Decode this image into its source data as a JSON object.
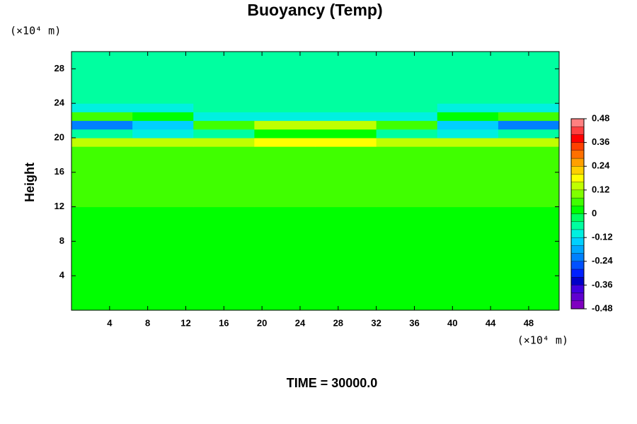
{
  "chart_data": {
    "type": "heatmap",
    "title": "Buoyancy (Temp)",
    "y_label": "Height",
    "y_unit": "(×10⁴ m)",
    "x_unit": "(×10⁴ m)",
    "footer": "TIME = 30000.0",
    "xlim": [
      0,
      51.2
    ],
    "ylim": [
      0,
      30
    ],
    "xticks": [
      4,
      8,
      12,
      16,
      20,
      24,
      28,
      32,
      36,
      40,
      44,
      48
    ],
    "yticks": [
      4,
      8,
      12,
      16,
      20,
      24,
      28
    ],
    "x_bins": [
      0,
      6.4,
      12.8,
      19.2,
      25.6,
      32,
      38.4,
      44.8,
      51.2
    ],
    "y_bins": [
      0,
      1,
      2,
      3,
      4,
      5,
      6,
      7,
      8,
      9,
      10,
      11,
      12,
      13,
      14,
      15,
      16,
      17,
      18,
      19,
      20,
      21,
      22,
      23,
      24,
      25,
      26,
      27,
      28,
      29,
      30
    ],
    "z": [
      [
        0.01,
        0.01,
        0.01,
        0.01,
        0.01,
        0.01,
        0.01,
        0.01
      ],
      [
        0.01,
        0.01,
        0.01,
        0.01,
        0.01,
        0.01,
        0.01,
        0.01
      ],
      [
        0.01,
        0.01,
        0.01,
        0.01,
        0.01,
        0.01,
        0.01,
        0.01
      ],
      [
        0.01,
        0.01,
        0.01,
        0.01,
        0.01,
        0.01,
        0.01,
        0.01
      ],
      [
        0.01,
        0.01,
        0.01,
        0.01,
        0.01,
        0.01,
        0.01,
        0.01
      ],
      [
        0.01,
        0.01,
        0.01,
        0.01,
        0.01,
        0.01,
        0.01,
        0.01
      ],
      [
        0.01,
        0.01,
        0.01,
        0.01,
        0.01,
        0.01,
        0.01,
        0.01
      ],
      [
        0.01,
        0.01,
        0.01,
        0.01,
        0.01,
        0.01,
        0.01,
        0.01
      ],
      [
        0.01,
        0.01,
        0.01,
        0.01,
        0.01,
        0.01,
        0.01,
        0.01
      ],
      [
        0.01,
        0.01,
        0.01,
        0.01,
        0.01,
        0.01,
        0.01,
        0.01
      ],
      [
        0.01,
        0.01,
        0.01,
        0.01,
        0.01,
        0.01,
        0.01,
        0.01
      ],
      [
        0.03,
        0.03,
        0.03,
        0.03,
        0.03,
        0.03,
        0.03,
        0.03
      ],
      [
        0.05,
        0.05,
        0.05,
        0.05,
        0.05,
        0.05,
        0.05,
        0.05
      ],
      [
        0.05,
        0.05,
        0.05,
        0.05,
        0.05,
        0.05,
        0.05,
        0.05
      ],
      [
        0.05,
        0.05,
        0.05,
        0.05,
        0.05,
        0.05,
        0.05,
        0.05
      ],
      [
        0.05,
        0.05,
        0.05,
        0.05,
        0.05,
        0.05,
        0.05,
        0.05
      ],
      [
        0.05,
        0.05,
        0.05,
        0.05,
        0.05,
        0.05,
        0.05,
        0.05
      ],
      [
        0.05,
        0.05,
        0.05,
        0.05,
        0.05,
        0.05,
        0.05,
        0.05
      ],
      [
        0.05,
        0.05,
        0.05,
        0.05,
        0.05,
        0.05,
        0.05,
        0.05
      ],
      [
        0.14,
        0.13,
        0.15,
        0.16,
        0.16,
        0.15,
        0.13,
        0.14
      ],
      [
        -0.06,
        -0.1,
        -0.06,
        0.02,
        0.02,
        -0.06,
        -0.1,
        -0.06
      ],
      [
        -0.22,
        -0.14,
        0.06,
        0.15,
        0.15,
        0.06,
        -0.14,
        -0.22
      ],
      [
        0.06,
        0.02,
        -0.1,
        -0.12,
        -0.12,
        -0.1,
        0.02,
        0.06
      ],
      [
        -0.1,
        -0.08,
        -0.06,
        -0.06,
        -0.06,
        -0.06,
        -0.08,
        -0.1
      ],
      [
        -0.06,
        -0.06,
        -0.06,
        -0.06,
        -0.06,
        -0.06,
        -0.06,
        -0.06
      ],
      [
        -0.06,
        -0.06,
        -0.06,
        -0.06,
        -0.06,
        -0.06,
        -0.06,
        -0.06
      ],
      [
        -0.06,
        -0.06,
        -0.06,
        -0.06,
        -0.06,
        -0.06,
        -0.06,
        -0.06
      ],
      [
        -0.06,
        -0.06,
        -0.06,
        -0.06,
        -0.06,
        -0.06,
        -0.06,
        -0.06
      ],
      [
        -0.06,
        -0.06,
        -0.06,
        -0.06,
        -0.06,
        -0.06,
        -0.06,
        -0.06
      ],
      [
        -0.06,
        -0.06,
        -0.06,
        -0.06,
        -0.06,
        -0.06,
        -0.06,
        -0.06
      ]
    ],
    "clim": [
      -0.48,
      0.48
    ],
    "cticks": [
      0.48,
      0.36,
      0.24,
      0.12,
      0,
      -0.12,
      -0.24,
      -0.36,
      -0.48
    ],
    "colors": [
      "#8000c0",
      "#6000d0",
      "#4000e0",
      "#0000c8",
      "#0020ff",
      "#0050ff",
      "#0080ff",
      "#00a8ff",
      "#00d0ff",
      "#00f0e0",
      "#00ffa0",
      "#00ff60",
      "#00ff00",
      "#40ff00",
      "#80ff00",
      "#c0ff00",
      "#ffff00",
      "#ffd000",
      "#ffa000",
      "#ff7000",
      "#ff4000",
      "#ff0000",
      "#ff4040",
      "#ff8080"
    ]
  }
}
